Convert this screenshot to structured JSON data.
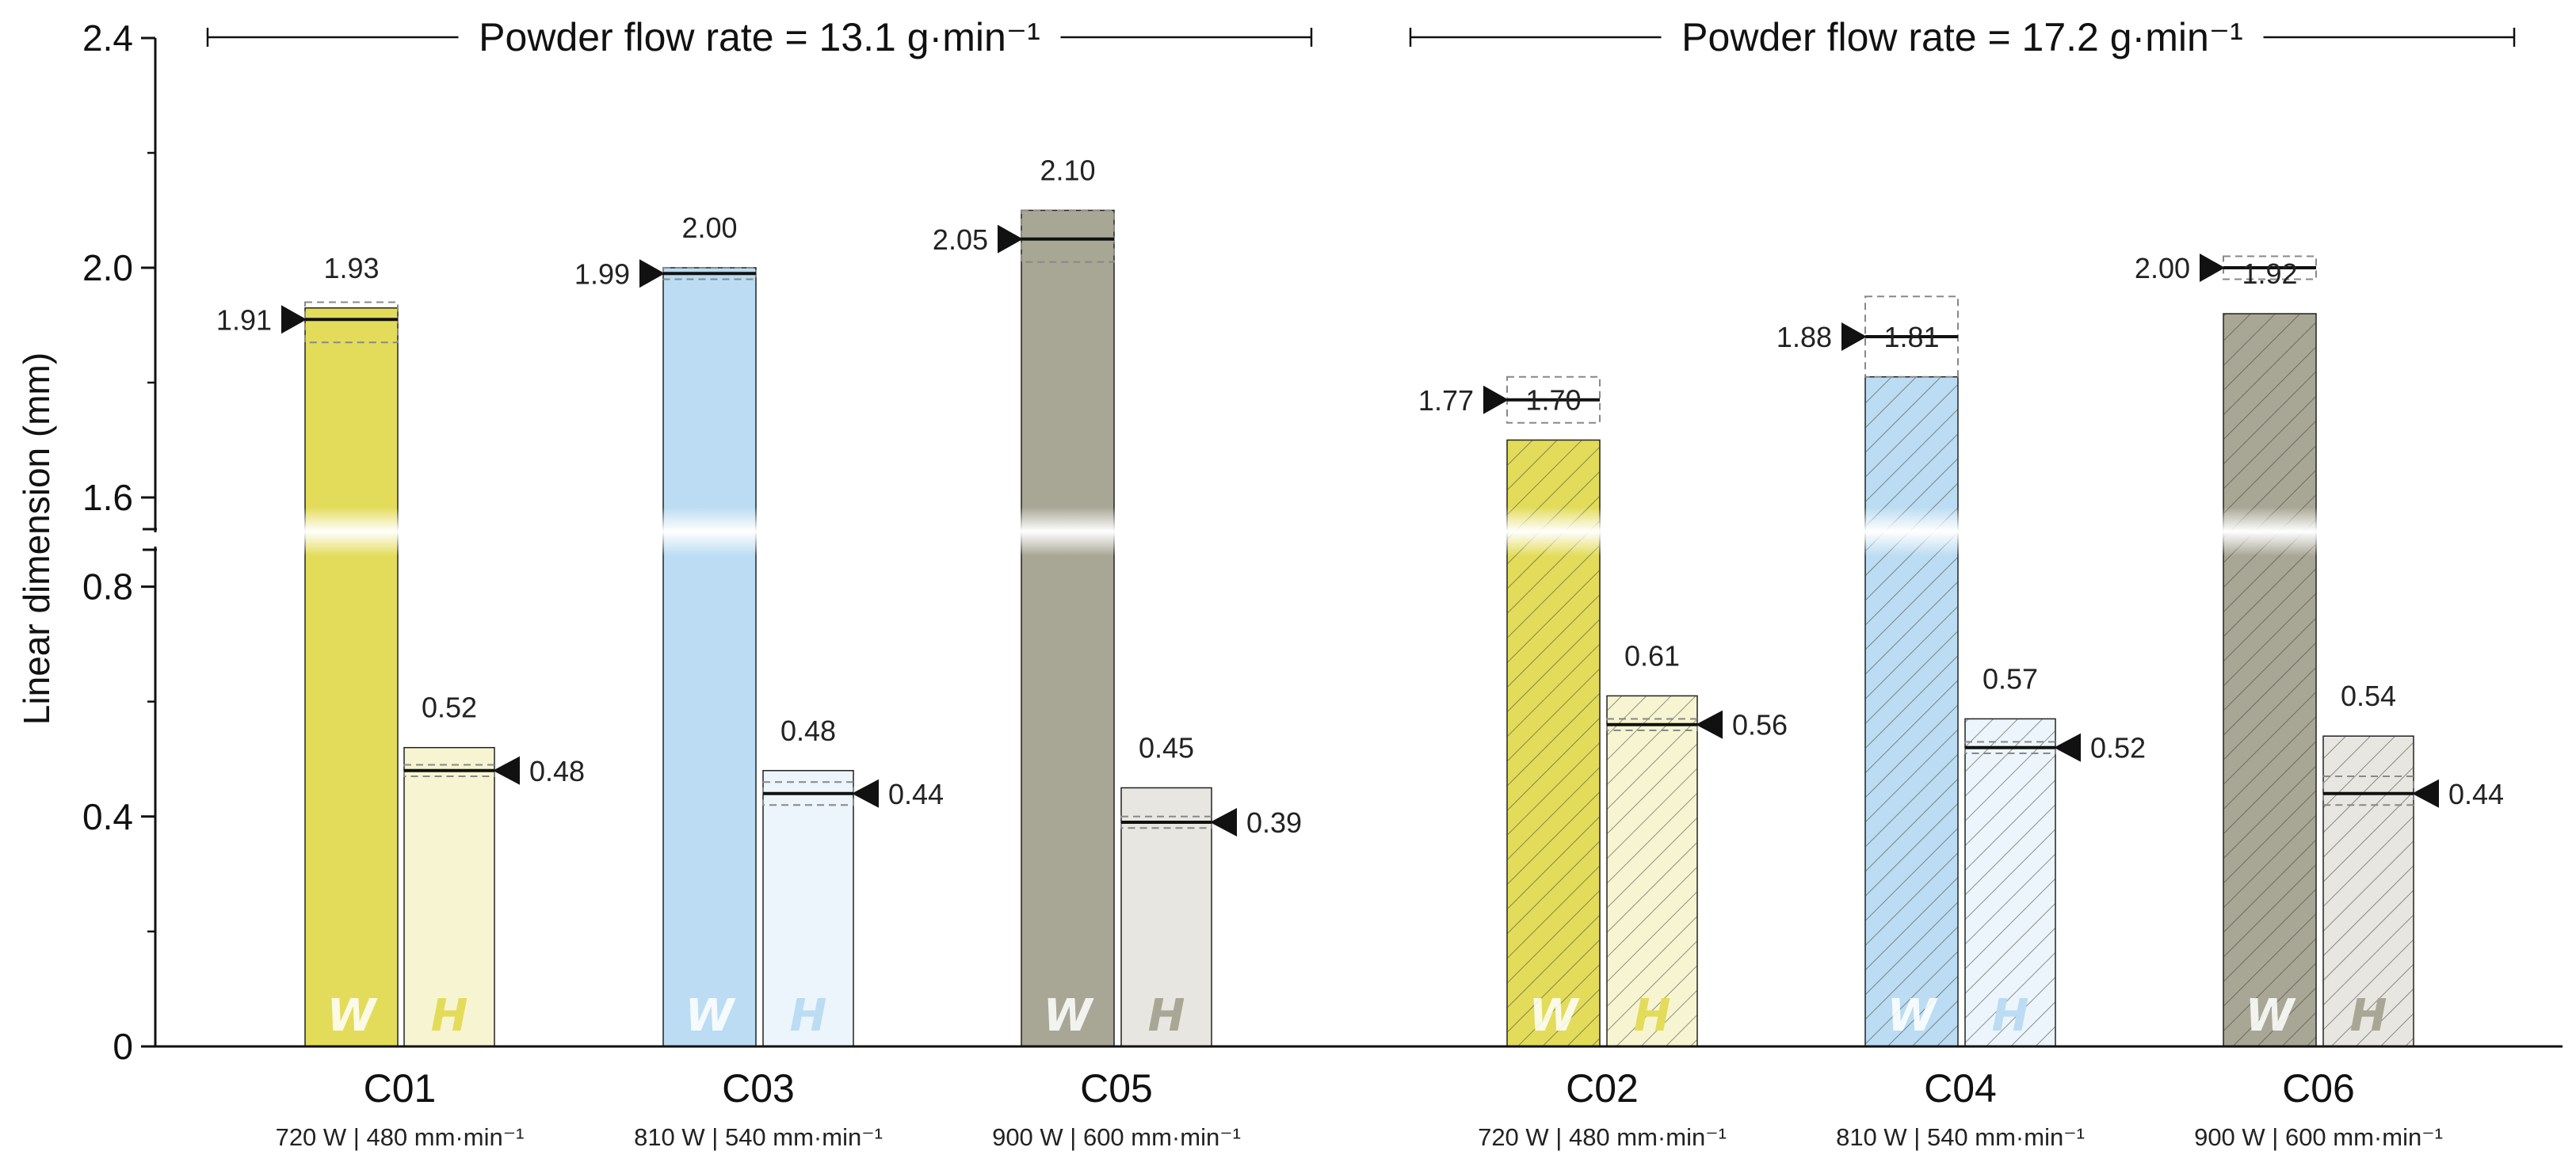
{
  "chart_data": {
    "type": "bar",
    "ylabel": "Linear dimension (mm)",
    "y_ticks": [
      "0",
      "0.4",
      "0.8",
      "1.6",
      "2.0",
      "2.4"
    ],
    "y_axis_break": [
      0.9,
      1.5
    ],
    "ylim": [
      0,
      2.4
    ],
    "groups": [
      {
        "label": "Powder flow rate = 13.1 g·min⁻¹",
        "categories": [
          "C01",
          "C03",
          "C05"
        ]
      },
      {
        "label": "Powder flow rate = 17.2 g·min⁻¹",
        "categories": [
          "C02",
          "C04",
          "C06"
        ]
      }
    ],
    "categories": [
      {
        "name": "C01",
        "params": "720 W | 480 mm·min⁻¹",
        "color": "#e3dc5a",
        "hatched": false,
        "W": {
          "bar": 1.93,
          "bar_label": "1.93",
          "measured": 1.91,
          "measured_label": "1.91",
          "range": [
            1.87,
            1.94
          ]
        },
        "H": {
          "bar": 0.52,
          "bar_label": "0.52",
          "measured": 0.48,
          "measured_label": "0.48",
          "range": [
            0.47,
            0.49
          ]
        }
      },
      {
        "name": "C03",
        "params": "810 W | 540 mm·min⁻¹",
        "color": "#bbdcf2",
        "hatched": false,
        "W": {
          "bar": 2.0,
          "bar_label": "2.00",
          "measured": 1.99,
          "measured_label": "1.99",
          "range": [
            1.98,
            2.0
          ]
        },
        "H": {
          "bar": 0.48,
          "bar_label": "0.48",
          "measured": 0.44,
          "measured_label": "0.44",
          "range": [
            0.42,
            0.46
          ]
        }
      },
      {
        "name": "C05",
        "params": "900 W | 600 mm·min⁻¹",
        "color": "#a8a695",
        "hatched": false,
        "W": {
          "bar": 2.1,
          "bar_label": "2.10",
          "measured": 2.05,
          "measured_label": "2.05",
          "range": [
            2.01,
            2.1
          ]
        },
        "H": {
          "bar": 0.45,
          "bar_label": "0.45",
          "measured": 0.39,
          "measured_label": "0.39",
          "range": [
            0.38,
            0.4
          ]
        }
      },
      {
        "name": "C02",
        "params": "720 W | 480 mm·min⁻¹",
        "color": "#e3dc5a",
        "hatched": true,
        "W": {
          "bar": 1.7,
          "bar_label": "1.70",
          "measured": 1.77,
          "measured_label": "1.77",
          "range": [
            1.73,
            1.81
          ]
        },
        "H": {
          "bar": 0.61,
          "bar_label": "0.61",
          "measured": 0.56,
          "measured_label": "0.56",
          "range": [
            0.55,
            0.57
          ]
        }
      },
      {
        "name": "C04",
        "params": "810 W | 540 mm·min⁻¹",
        "color": "#bbdcf2",
        "hatched": true,
        "W": {
          "bar": 1.81,
          "bar_label": "1.81",
          "measured": 1.88,
          "measured_label": "1.88",
          "range": [
            1.81,
            1.95
          ]
        },
        "H": {
          "bar": 0.57,
          "bar_label": "0.57",
          "measured": 0.52,
          "measured_label": "0.52",
          "range": [
            0.51,
            0.53
          ]
        }
      },
      {
        "name": "C06",
        "params": "900 W | 600 mm·min⁻¹",
        "color": "#a8a695",
        "hatched": true,
        "W": {
          "bar": 1.92,
          "bar_label": "1.92",
          "measured": 2.0,
          "measured_label": "2.00",
          "range": [
            1.98,
            2.02
          ]
        },
        "H": {
          "bar": 0.54,
          "bar_label": "0.54",
          "measured": 0.44,
          "measured_label": "0.44",
          "range": [
            0.42,
            0.47
          ]
        }
      }
    ],
    "bar_letters": {
      "W": "W",
      "H": "H"
    },
    "legend": "none",
    "grid": false
  }
}
